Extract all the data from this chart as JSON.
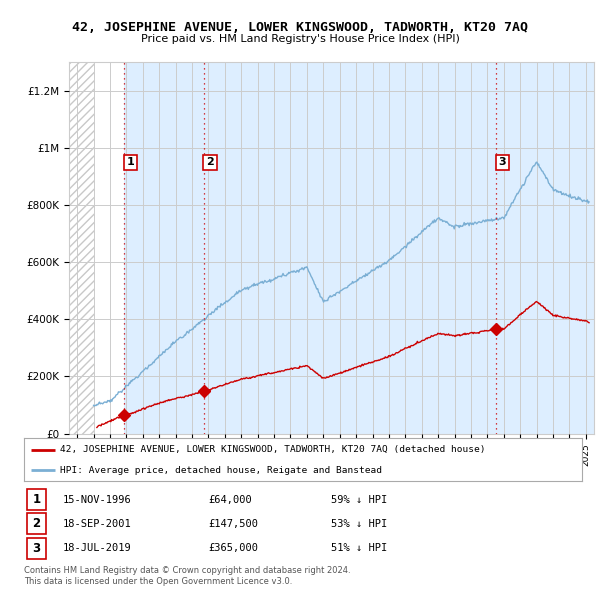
{
  "title": "42, JOSEPHINE AVENUE, LOWER KINGSWOOD, TADWORTH, KT20 7AQ",
  "subtitle": "Price paid vs. HM Land Registry's House Price Index (HPI)",
  "legend_line1": "42, JOSEPHINE AVENUE, LOWER KINGSWOOD, TADWORTH, KT20 7AQ (detached house)",
  "legend_line2": "HPI: Average price, detached house, Reigate and Banstead",
  "footer1": "Contains HM Land Registry data © Crown copyright and database right 2024.",
  "footer2": "This data is licensed under the Open Government Licence v3.0.",
  "sales": [
    {
      "num": 1,
      "date": "15-NOV-1996",
      "price": 64000,
      "pct": "59%",
      "x": 1996.878
    },
    {
      "num": 2,
      "date": "18-SEP-2001",
      "price": 147500,
      "pct": "53%",
      "x": 2001.714
    },
    {
      "num": 3,
      "date": "18-JUL-2019",
      "price": 365000,
      "pct": "51%",
      "x": 2019.542
    }
  ],
  "ylim": [
    0,
    1300000
  ],
  "xlim": [
    1993.5,
    2025.5
  ],
  "hatch_end": 1995.0,
  "red_color": "#cc0000",
  "blue_color": "#7bafd4",
  "shade_color": "#ddeeff",
  "hatch_color": "#aaaaaa",
  "grid_color": "#cccccc",
  "bg_color": "#ffffff"
}
